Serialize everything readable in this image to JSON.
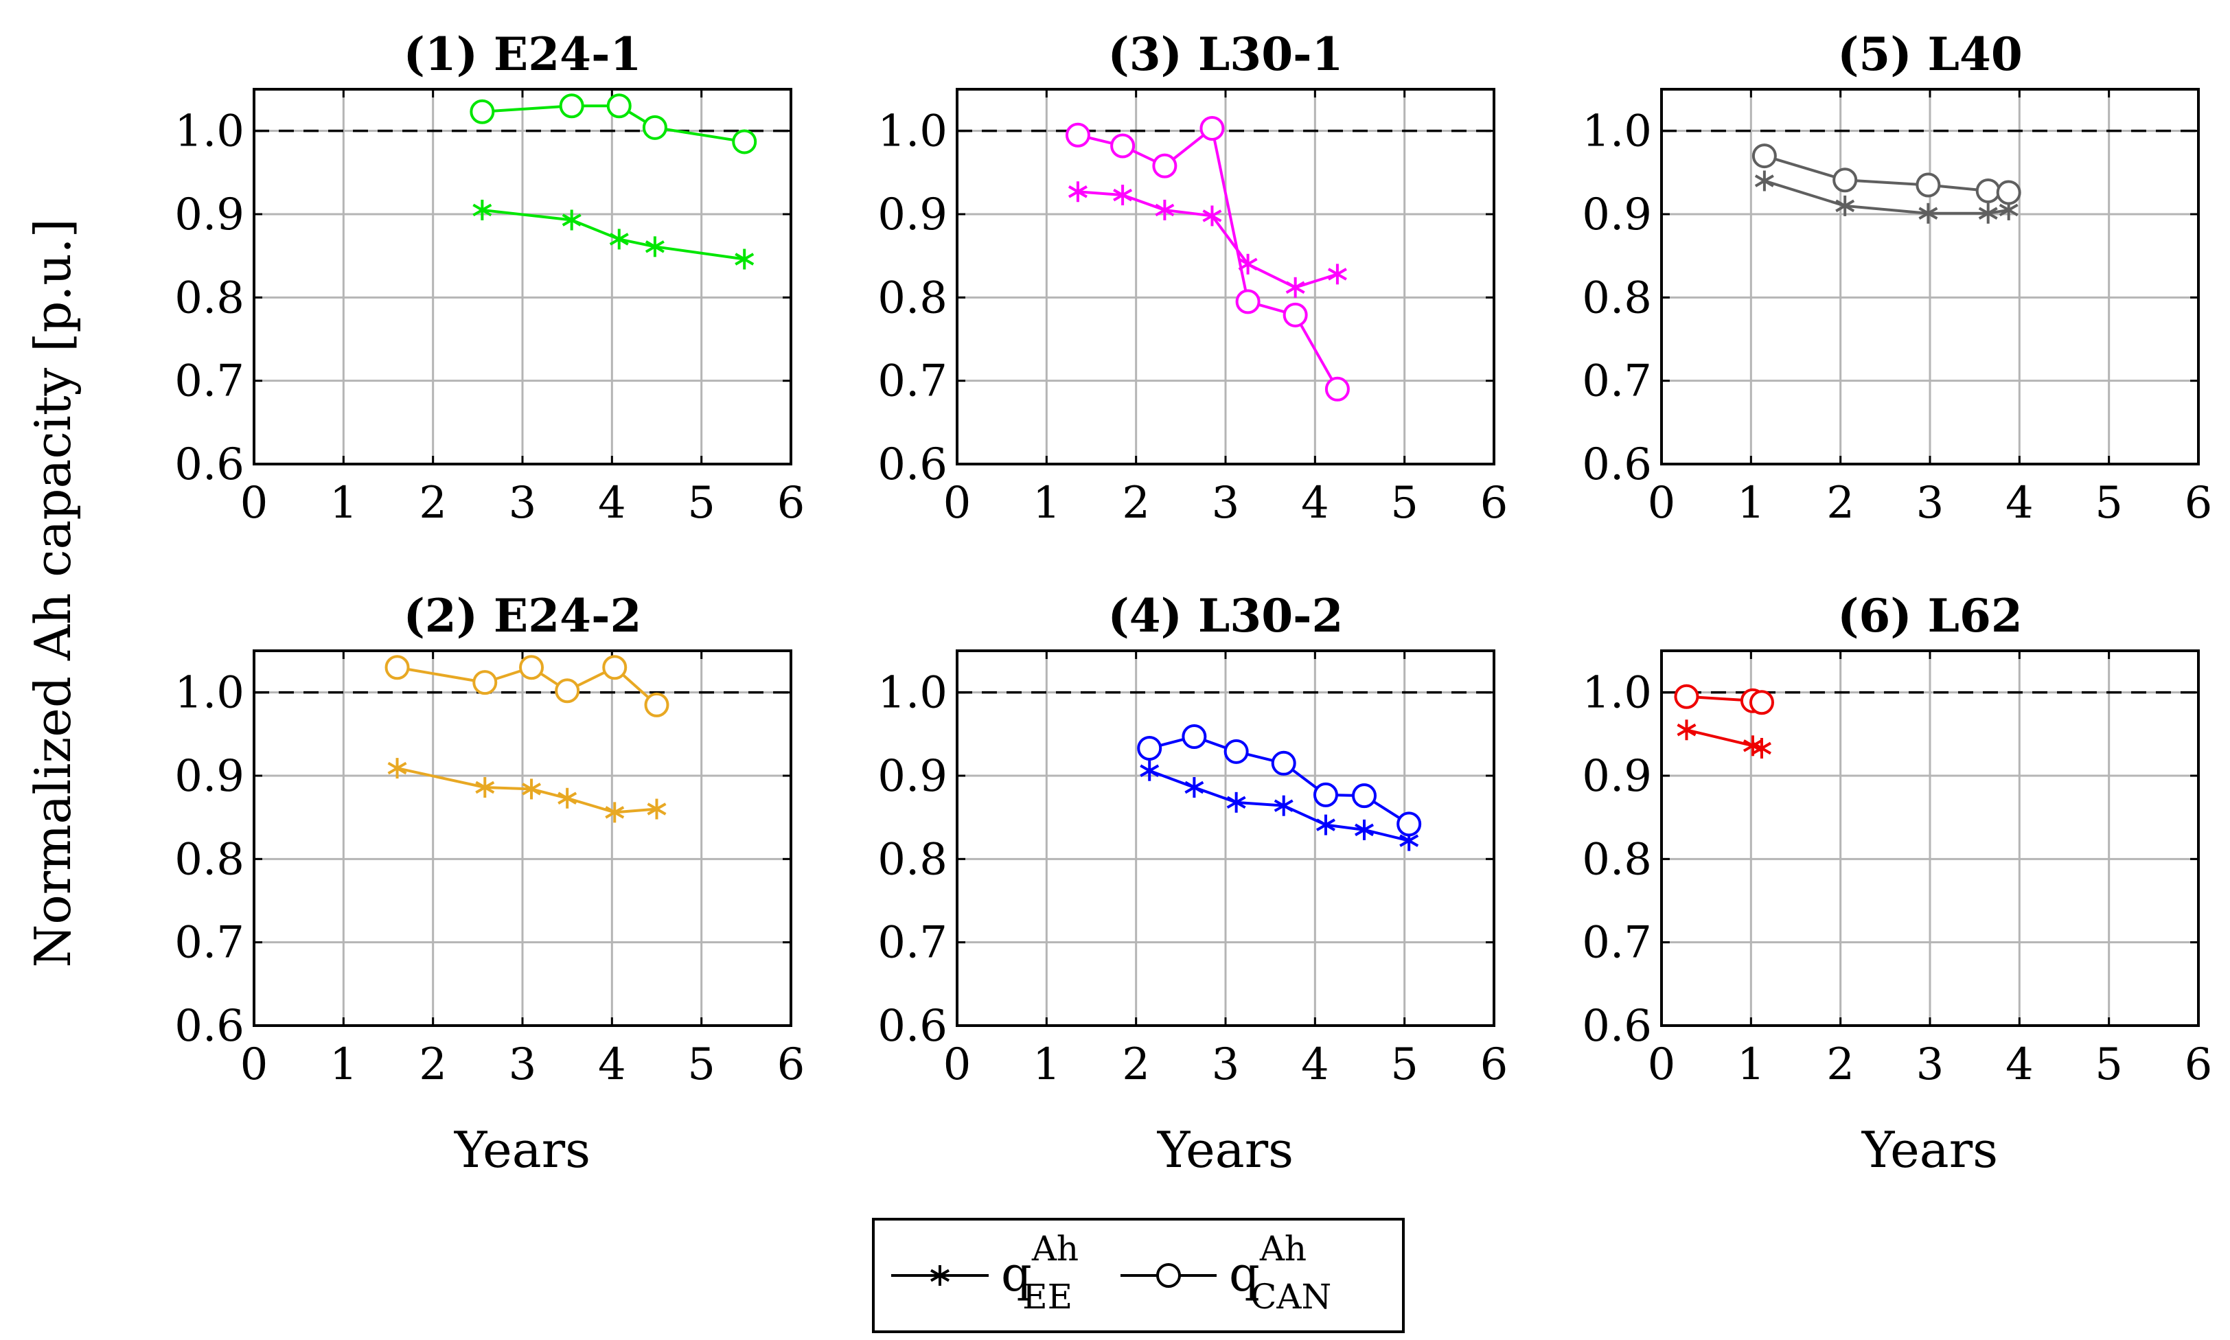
{
  "figure": {
    "ylabel": "Normalized Ah capacity [p.u.]",
    "xlabel": "Years",
    "legend": {
      "ee": {
        "base": "q",
        "sup": "Ah",
        "sub": "EE"
      },
      "can": {
        "base": "q",
        "sup": "Ah",
        "sub": "CAN"
      }
    }
  },
  "chart_data": [
    {
      "type": "line",
      "title": "(1) E24-1",
      "color": "#00e600",
      "xlabel": "",
      "ylabel": "",
      "xlim": [
        0,
        6
      ],
      "ylim": [
        0.6,
        1.05
      ],
      "xticks": [
        0,
        1,
        2,
        3,
        4,
        5,
        6
      ],
      "yticks": [
        0.6,
        0.7,
        0.8,
        0.9,
        1.0
      ],
      "ytick_labels": [
        "0.6",
        "0.7",
        "0.8",
        "0.9",
        "1.0"
      ],
      "reference_line": 1.0,
      "series": [
        {
          "name": "q_EE^Ah",
          "marker": "asterisk",
          "x": [
            2.55,
            3.55,
            4.08,
            4.48,
            5.48
          ],
          "y": [
            0.905,
            0.893,
            0.87,
            0.861,
            0.846
          ]
        },
        {
          "name": "q_CAN^Ah",
          "marker": "circle",
          "x": [
            2.55,
            3.55,
            4.08,
            4.48,
            5.48
          ],
          "y": [
            1.023,
            1.03,
            1.03,
            1.004,
            0.987
          ]
        }
      ]
    },
    {
      "type": "line",
      "title": "(3) L30-1",
      "color": "#ff00ff",
      "xlabel": "",
      "ylabel": "",
      "xlim": [
        0,
        6
      ],
      "ylim": [
        0.6,
        1.05
      ],
      "xticks": [
        0,
        1,
        2,
        3,
        4,
        5,
        6
      ],
      "yticks": [
        0.6,
        0.7,
        0.8,
        0.9,
        1.0
      ],
      "ytick_labels": [
        "0.6",
        "0.7",
        "0.8",
        "0.9",
        "1.0"
      ],
      "reference_line": 1.0,
      "series": [
        {
          "name": "q_EE^Ah",
          "marker": "asterisk",
          "x": [
            1.35,
            1.85,
            2.32,
            2.85,
            3.25,
            3.78,
            4.25
          ],
          "y": [
            0.927,
            0.923,
            0.905,
            0.898,
            0.84,
            0.812,
            0.828
          ]
        },
        {
          "name": "q_CAN^Ah",
          "marker": "circle",
          "x": [
            1.35,
            1.85,
            2.32,
            2.85,
            3.25,
            3.78,
            4.25
          ],
          "y": [
            0.995,
            0.982,
            0.958,
            1.003,
            0.795,
            0.779,
            0.69
          ]
        }
      ]
    },
    {
      "type": "line",
      "title": "(5) L40",
      "color": "#5f5f5f",
      "xlabel": "",
      "ylabel": "",
      "xlim": [
        0,
        6
      ],
      "ylim": [
        0.6,
        1.05
      ],
      "xticks": [
        0,
        1,
        2,
        3,
        4,
        5,
        6
      ],
      "yticks": [
        0.6,
        0.7,
        0.8,
        0.9,
        1.0
      ],
      "ytick_labels": [
        "0.6",
        "0.7",
        "0.8",
        "0.9",
        "1.0"
      ],
      "reference_line": 1.0,
      "series": [
        {
          "name": "q_EE^Ah",
          "marker": "asterisk",
          "x": [
            1.15,
            2.05,
            2.98,
            3.65,
            3.88
          ],
          "y": [
            0.94,
            0.91,
            0.901,
            0.901,
            0.905
          ]
        },
        {
          "name": "q_CAN^Ah",
          "marker": "circle",
          "x": [
            1.15,
            2.05,
            2.98,
            3.65,
            3.88
          ],
          "y": [
            0.97,
            0.941,
            0.935,
            0.928,
            0.926
          ]
        }
      ]
    },
    {
      "type": "line",
      "title": "(2) E24-2",
      "color": "#e8a823",
      "xlabel": "Years",
      "ylabel": "",
      "xlim": [
        0,
        6
      ],
      "ylim": [
        0.6,
        1.05
      ],
      "xticks": [
        0,
        1,
        2,
        3,
        4,
        5,
        6
      ],
      "yticks": [
        0.6,
        0.7,
        0.8,
        0.9,
        1.0
      ],
      "ytick_labels": [
        "0.6",
        "0.7",
        "0.8",
        "0.9",
        "1.0"
      ],
      "reference_line": 1.0,
      "series": [
        {
          "name": "q_EE^Ah",
          "marker": "asterisk",
          "x": [
            1.6,
            2.58,
            3.1,
            3.5,
            4.03,
            4.5
          ],
          "y": [
            0.909,
            0.886,
            0.884,
            0.873,
            0.856,
            0.86
          ]
        },
        {
          "name": "q_CAN^Ah",
          "marker": "circle",
          "x": [
            1.6,
            2.58,
            3.1,
            3.5,
            4.03,
            4.5
          ],
          "y": [
            1.03,
            1.012,
            1.03,
            1.002,
            1.03,
            0.985
          ]
        }
      ]
    },
    {
      "type": "line",
      "title": "(4) L30-2",
      "color": "#0000ff",
      "xlabel": "Years",
      "ylabel": "",
      "xlim": [
        0,
        6
      ],
      "ylim": [
        0.6,
        1.05
      ],
      "xticks": [
        0,
        1,
        2,
        3,
        4,
        5,
        6
      ],
      "yticks": [
        0.6,
        0.7,
        0.8,
        0.9,
        1.0
      ],
      "ytick_labels": [
        "0.6",
        "0.7",
        "0.8",
        "0.9",
        "1.0"
      ],
      "reference_line": 1.0,
      "series": [
        {
          "name": "q_EE^Ah",
          "marker": "asterisk",
          "x": [
            2.15,
            2.65,
            3.12,
            3.65,
            4.12,
            4.55,
            5.05
          ],
          "y": [
            0.906,
            0.886,
            0.868,
            0.864,
            0.841,
            0.835,
            0.822
          ]
        },
        {
          "name": "q_CAN^Ah",
          "marker": "circle",
          "x": [
            2.15,
            2.65,
            3.12,
            3.65,
            4.12,
            4.55,
            5.05
          ],
          "y": [
            0.933,
            0.947,
            0.929,
            0.915,
            0.877,
            0.876,
            0.842
          ]
        }
      ]
    },
    {
      "type": "line",
      "title": "(6) L62",
      "color": "#ee0000",
      "xlabel": "Years",
      "ylabel": "",
      "xlim": [
        0,
        6
      ],
      "ylim": [
        0.6,
        1.05
      ],
      "xticks": [
        0,
        1,
        2,
        3,
        4,
        5,
        6
      ],
      "yticks": [
        0.6,
        0.7,
        0.8,
        0.9,
        1.0
      ],
      "ytick_labels": [
        "0.6",
        "0.7",
        "0.8",
        "0.9",
        "1.0"
      ],
      "reference_line": 1.0,
      "series": [
        {
          "name": "q_EE^Ah",
          "marker": "asterisk",
          "x": [
            0.28,
            1.02,
            1.12
          ],
          "y": [
            0.955,
            0.936,
            0.933
          ]
        },
        {
          "name": "q_CAN^Ah",
          "marker": "circle",
          "x": [
            0.28,
            1.02,
            1.12
          ],
          "y": [
            0.995,
            0.99,
            0.988
          ]
        }
      ]
    }
  ]
}
